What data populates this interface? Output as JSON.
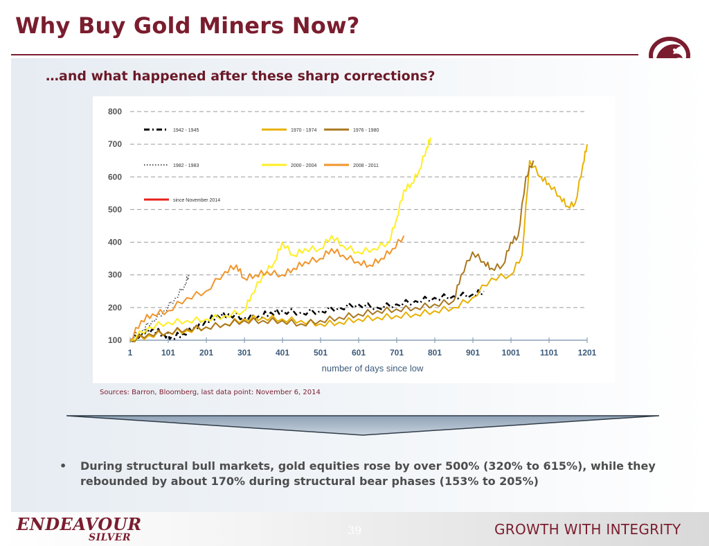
{
  "slide": {
    "title": "Why Buy Gold Miners Now?",
    "subtitle": "…and what happened after these sharp corrections?",
    "source": "Sources: Barron, Bloomberg, last data point: November 6, 2014",
    "bullet_symbol": "•",
    "bullet": "During structural bull markets, gold equities rose by over 500% (320% to 615%), while they rebounded by about 170% during structural bear phases (153% to 205%)",
    "page_number": "39",
    "brand_line1": "ENDEAVOUR",
    "brand_line2": "SILVER",
    "tagline": "GROWTH WITH INTEGRITY",
    "colors": {
      "brand": "#7a1d2e",
      "text": "#4d4d4d"
    },
    "logo_icon": "eagle-head-emblem-icon"
  },
  "chart_data": {
    "type": "line",
    "xlabel": "number of days since low",
    "ylabel": "",
    "xlim": [
      1,
      1201
    ],
    "ylim": [
      100,
      800
    ],
    "xticks": [
      1,
      101,
      201,
      301,
      401,
      501,
      601,
      701,
      801,
      901,
      1001,
      1101,
      1201
    ],
    "yticks": [
      100,
      200,
      300,
      400,
      500,
      600,
      700,
      800
    ],
    "grid": "horizontal-dashed",
    "legend_position": "top-left-inside",
    "series": [
      {
        "name": "1942 - 1945",
        "color": "#000000",
        "style": "dash-dot",
        "x": [
          1,
          30,
          60,
          90,
          110,
          140,
          170,
          200,
          230,
          260,
          300,
          340,
          370,
          400,
          450,
          500,
          550,
          600,
          650,
          700,
          750,
          800,
          850,
          900,
          930
        ],
        "y": [
          100,
          120,
          135,
          118,
          110,
          120,
          140,
          160,
          175,
          180,
          170,
          175,
          185,
          190,
          185,
          190,
          200,
          210,
          200,
          210,
          220,
          230,
          235,
          240,
          250
        ]
      },
      {
        "name": "1970 - 1974",
        "color": "#e8b000",
        "style": "solid",
        "x": [
          1,
          50,
          100,
          150,
          200,
          250,
          300,
          350,
          400,
          450,
          500,
          550,
          600,
          650,
          700,
          750,
          800,
          850,
          900,
          950,
          1000,
          1030,
          1050,
          1080,
          1100,
          1130,
          1150,
          1170,
          1190,
          1201
        ],
        "y": [
          100,
          115,
          125,
          130,
          140,
          150,
          165,
          170,
          165,
          160,
          150,
          155,
          165,
          170,
          175,
          180,
          190,
          200,
          230,
          290,
          300,
          360,
          650,
          600,
          580,
          540,
          510,
          520,
          640,
          700
        ]
      },
      {
        "name": "1976 - 1980",
        "color": "#a9771f",
        "style": "solid",
        "x": [
          1,
          50,
          100,
          150,
          200,
          250,
          300,
          350,
          400,
          450,
          500,
          550,
          600,
          650,
          700,
          750,
          800,
          850,
          870,
          900,
          930,
          950,
          980,
          1000,
          1020,
          1040,
          1060
        ],
        "y": [
          100,
          120,
          125,
          135,
          140,
          150,
          160,
          160,
          160,
          150,
          160,
          170,
          180,
          190,
          195,
          200,
          210,
          220,
          300,
          370,
          340,
          320,
          330,
          400,
          420,
          600,
          650
        ]
      },
      {
        "name": "1982 - 1983",
        "color": "#555555",
        "style": "dotted",
        "x": [
          1,
          30,
          60,
          90,
          120,
          145,
          155
        ],
        "y": [
          100,
          130,
          160,
          190,
          230,
          270,
          300
        ]
      },
      {
        "name": "2000 - 2004",
        "color": "#ffee22",
        "style": "solid",
        "x": [
          1,
          50,
          100,
          150,
          200,
          250,
          300,
          320,
          350,
          380,
          400,
          430,
          460,
          500,
          530,
          560,
          600,
          640,
          680,
          700,
          720,
          740,
          760,
          780,
          790
        ],
        "y": [
          100,
          140,
          155,
          160,
          165,
          175,
          190,
          240,
          300,
          340,
          400,
          360,
          380,
          380,
          420,
          390,
          370,
          380,
          400,
          470,
          560,
          580,
          620,
          690,
          720
        ]
      },
      {
        "name": "2008 - 2011",
        "color": "#f0952a",
        "style": "solid",
        "x": [
          1,
          30,
          60,
          100,
          150,
          200,
          250,
          280,
          300,
          330,
          360,
          400,
          430,
          460,
          500,
          530,
          560,
          600,
          630,
          660,
          690,
          720
        ],
        "y": [
          100,
          160,
          180,
          190,
          230,
          250,
          310,
          330,
          290,
          300,
          310,
          300,
          320,
          340,
          350,
          380,
          360,
          340,
          330,
          350,
          380,
          420
        ]
      },
      {
        "name": "since November 2014",
        "color": "#e8201a",
        "style": "solid",
        "x": [],
        "y": []
      }
    ]
  }
}
